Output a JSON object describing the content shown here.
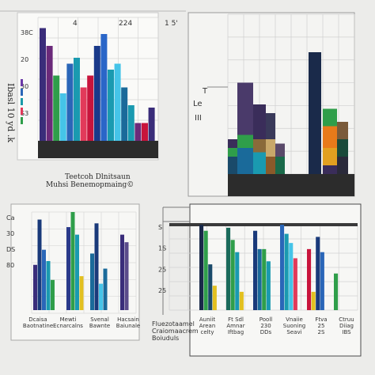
{
  "chart_data": [
    {
      "type": "bar",
      "panel": "top-left",
      "tick_labels_top": [
        "4",
        "224",
        "1 5'"
      ],
      "y_tick_labels": [
        "38C",
        "20",
        "30",
        "S3"
      ],
      "y_axis_label": "Ibasl 10 yd .k",
      "caption_lines": [
        "Teetcoh Dlnitsaun",
        "Muhsi Benemopmaing©"
      ],
      "legend_swatches": [
        "#6b3aa8",
        "#2a66b8",
        "#1a9aa8",
        "#e23a5a",
        "#2f9e4a"
      ],
      "bars": [
        {
          "color": "#3a2d7a",
          "value": 95
        },
        {
          "color": "#6b2a7a",
          "value": 80
        },
        {
          "color": "#2f9e4a",
          "value": 55
        },
        {
          "color": "#45c4e8",
          "value": 40
        },
        {
          "color": "#2a66b8",
          "value": 65
        },
        {
          "color": "#1a9ab0",
          "value": 70
        },
        {
          "color": "#e23a5a",
          "value": 45
        },
        {
          "color": "#c8143c",
          "value": 55
        },
        {
          "color": "#1a3a8a",
          "value": 80
        },
        {
          "color": "#2a66c8",
          "value": 90
        },
        {
          "color": "#1a9ab0",
          "value": 60
        },
        {
          "color": "#45c4e8",
          "value": 65
        },
        {
          "color": "#1a6a9a",
          "value": 45
        },
        {
          "color": "#1a9ab0",
          "value": 30
        },
        {
          "color": "#6b2a7a",
          "value": 15
        },
        {
          "color": "#c8143c",
          "value": 15
        },
        {
          "color": "#3a2d7a",
          "value": 28
        }
      ]
    },
    {
      "type": "bar",
      "panel": "top-right",
      "y_tick_labels": [
        "T",
        "Le",
        "III"
      ],
      "stacks": [
        {
          "segments": [
            {
              "color": "#1a4a6a",
              "value": 20
            },
            {
              "color": "#2f9e4a",
              "value": 10
            },
            {
              "color": "#3a2d5a",
              "value": 10
            }
          ]
        },
        {
          "segments": [
            {
              "color": "#1a6a9a",
              "value": 30
            },
            {
              "color": "#2f9e4a",
              "value": 15
            },
            {
              "color": "#4a3a6a",
              "value": 60
            }
          ]
        },
        {
          "segments": [
            {
              "color": "#1a9ab0",
              "value": 25
            },
            {
              "color": "#8a6a3a",
              "value": 15
            },
            {
              "color": "#3a2d5a",
              "value": 40
            }
          ]
        },
        {
          "segments": [
            {
              "color": "#8a5a2a",
              "value": 20
            },
            {
              "color": "#c8a86a",
              "value": 20
            },
            {
              "color": "#3a3a5a",
              "value": 30
            }
          ]
        },
        {
          "segments": [
            {
              "color": "#1a6a4a",
              "value": 20
            },
            {
              "color": "#5a4a6a",
              "value": 15
            }
          ]
        },
        {
          "segments": [
            {
              "color": "#1a2a4a",
              "value": 140
            }
          ]
        },
        {
          "segments": [
            {
              "color": "#3a2d5a",
              "value": 10
            },
            {
              "color": "#e2a020",
              "value": 20
            },
            {
              "color": "#e87a1a",
              "value": 25
            },
            {
              "color": "#2f9e4a",
              "value": 20
            }
          ]
        },
        {
          "segments": [
            {
              "color": "#2a2a3a",
              "value": 20
            },
            {
              "color": "#1a4a3a",
              "value": 20
            },
            {
              "color": "#7a5a3a",
              "value": 20
            }
          ]
        }
      ]
    },
    {
      "type": "bar",
      "panel": "bottom-left",
      "y_tick_labels": [
        "Ca",
        "30",
        "DS",
        "80"
      ],
      "x_labels": [
        "Dcaisa\nBaotnatine",
        "Mewti\nEcnarcalns",
        "Svenal\nBawnte",
        "Hacsain\nBaiunale"
      ],
      "bars": [
        {
          "color": "#3a2d7a",
          "value": 60
        },
        {
          "color": "#1a3a7a",
          "value": 120
        },
        {
          "color": "#2a66b8",
          "value": 80
        },
        {
          "color": "#1a9ab0",
          "value": 65
        },
        {
          "color": "#2f9e4a",
          "value": 40
        },
        {
          "color": "#2a3a8a",
          "value": 110
        },
        {
          "color": "#2f9e4a",
          "value": 130
        },
        {
          "color": "#1a9ab0",
          "value": 100
        },
        {
          "color": "#e2c020",
          "value": 45
        },
        {
          "color": "#1a6a9a",
          "value": 75
        },
        {
          "color": "#1a3a7a",
          "value": 115
        },
        {
          "color": "#45c4e8",
          "value": 35
        },
        {
          "color": "#1a6a9a",
          "value": 55
        },
        {
          "color": "#3a2d7a",
          "value": 100
        },
        {
          "color": "#5a4a8a",
          "value": 90
        }
      ]
    },
    {
      "type": "bar",
      "panel": "bottom-right",
      "y_tick_labels": [
        "S",
        "1S",
        "25",
        "25"
      ],
      "x_labels": [
        "Auniit\nArean\ncelty",
        "Ft Sdl\nAmnar\nIftbag",
        "Pooll\n230\nDDs",
        "Vnaiie\nSuoning\nSeavi",
        "Ftva\n25\n2S",
        "Ctruu\nDiiag\nIBS"
      ],
      "bars": [
        {
          "color": "#1a2a4a",
          "value": 140
        },
        {
          "color": "#2f9e4a",
          "value": 130
        },
        {
          "color": "#1a4a6a",
          "value": 75
        },
        {
          "color": "#e2c020",
          "value": 40
        },
        {
          "color": "#1a6a5a",
          "value": 135
        },
        {
          "color": "#2f9e4a",
          "value": 115
        },
        {
          "color": "#1a9ab0",
          "value": 95
        },
        {
          "color": "#e2c020",
          "value": 30
        },
        {
          "color": "#1a3a7a",
          "value": 130
        },
        {
          "color": "#1a6a9a",
          "value": 100
        },
        {
          "color": "#2f9e4a",
          "value": 100
        },
        {
          "color": "#1a9ab0",
          "value": 80
        },
        {
          "color": "#2a66b8",
          "value": 140
        },
        {
          "color": "#1a9ab0",
          "value": 125
        },
        {
          "color": "#45c4e8",
          "value": 110
        },
        {
          "color": "#e23a5a",
          "value": 85
        },
        {
          "color": "#c8143c",
          "value": 100
        },
        {
          "color": "#e2c020",
          "value": 30
        },
        {
          "color": "#1a3a7a",
          "value": 120
        },
        {
          "color": "#2a66b8",
          "value": 95
        },
        {
          "color": "#2f9e4a",
          "value": 60
        }
      ]
    }
  ],
  "center_label": [
    "Fluezotaamel",
    "Craiomaacrem",
    "Boiuduls"
  ]
}
